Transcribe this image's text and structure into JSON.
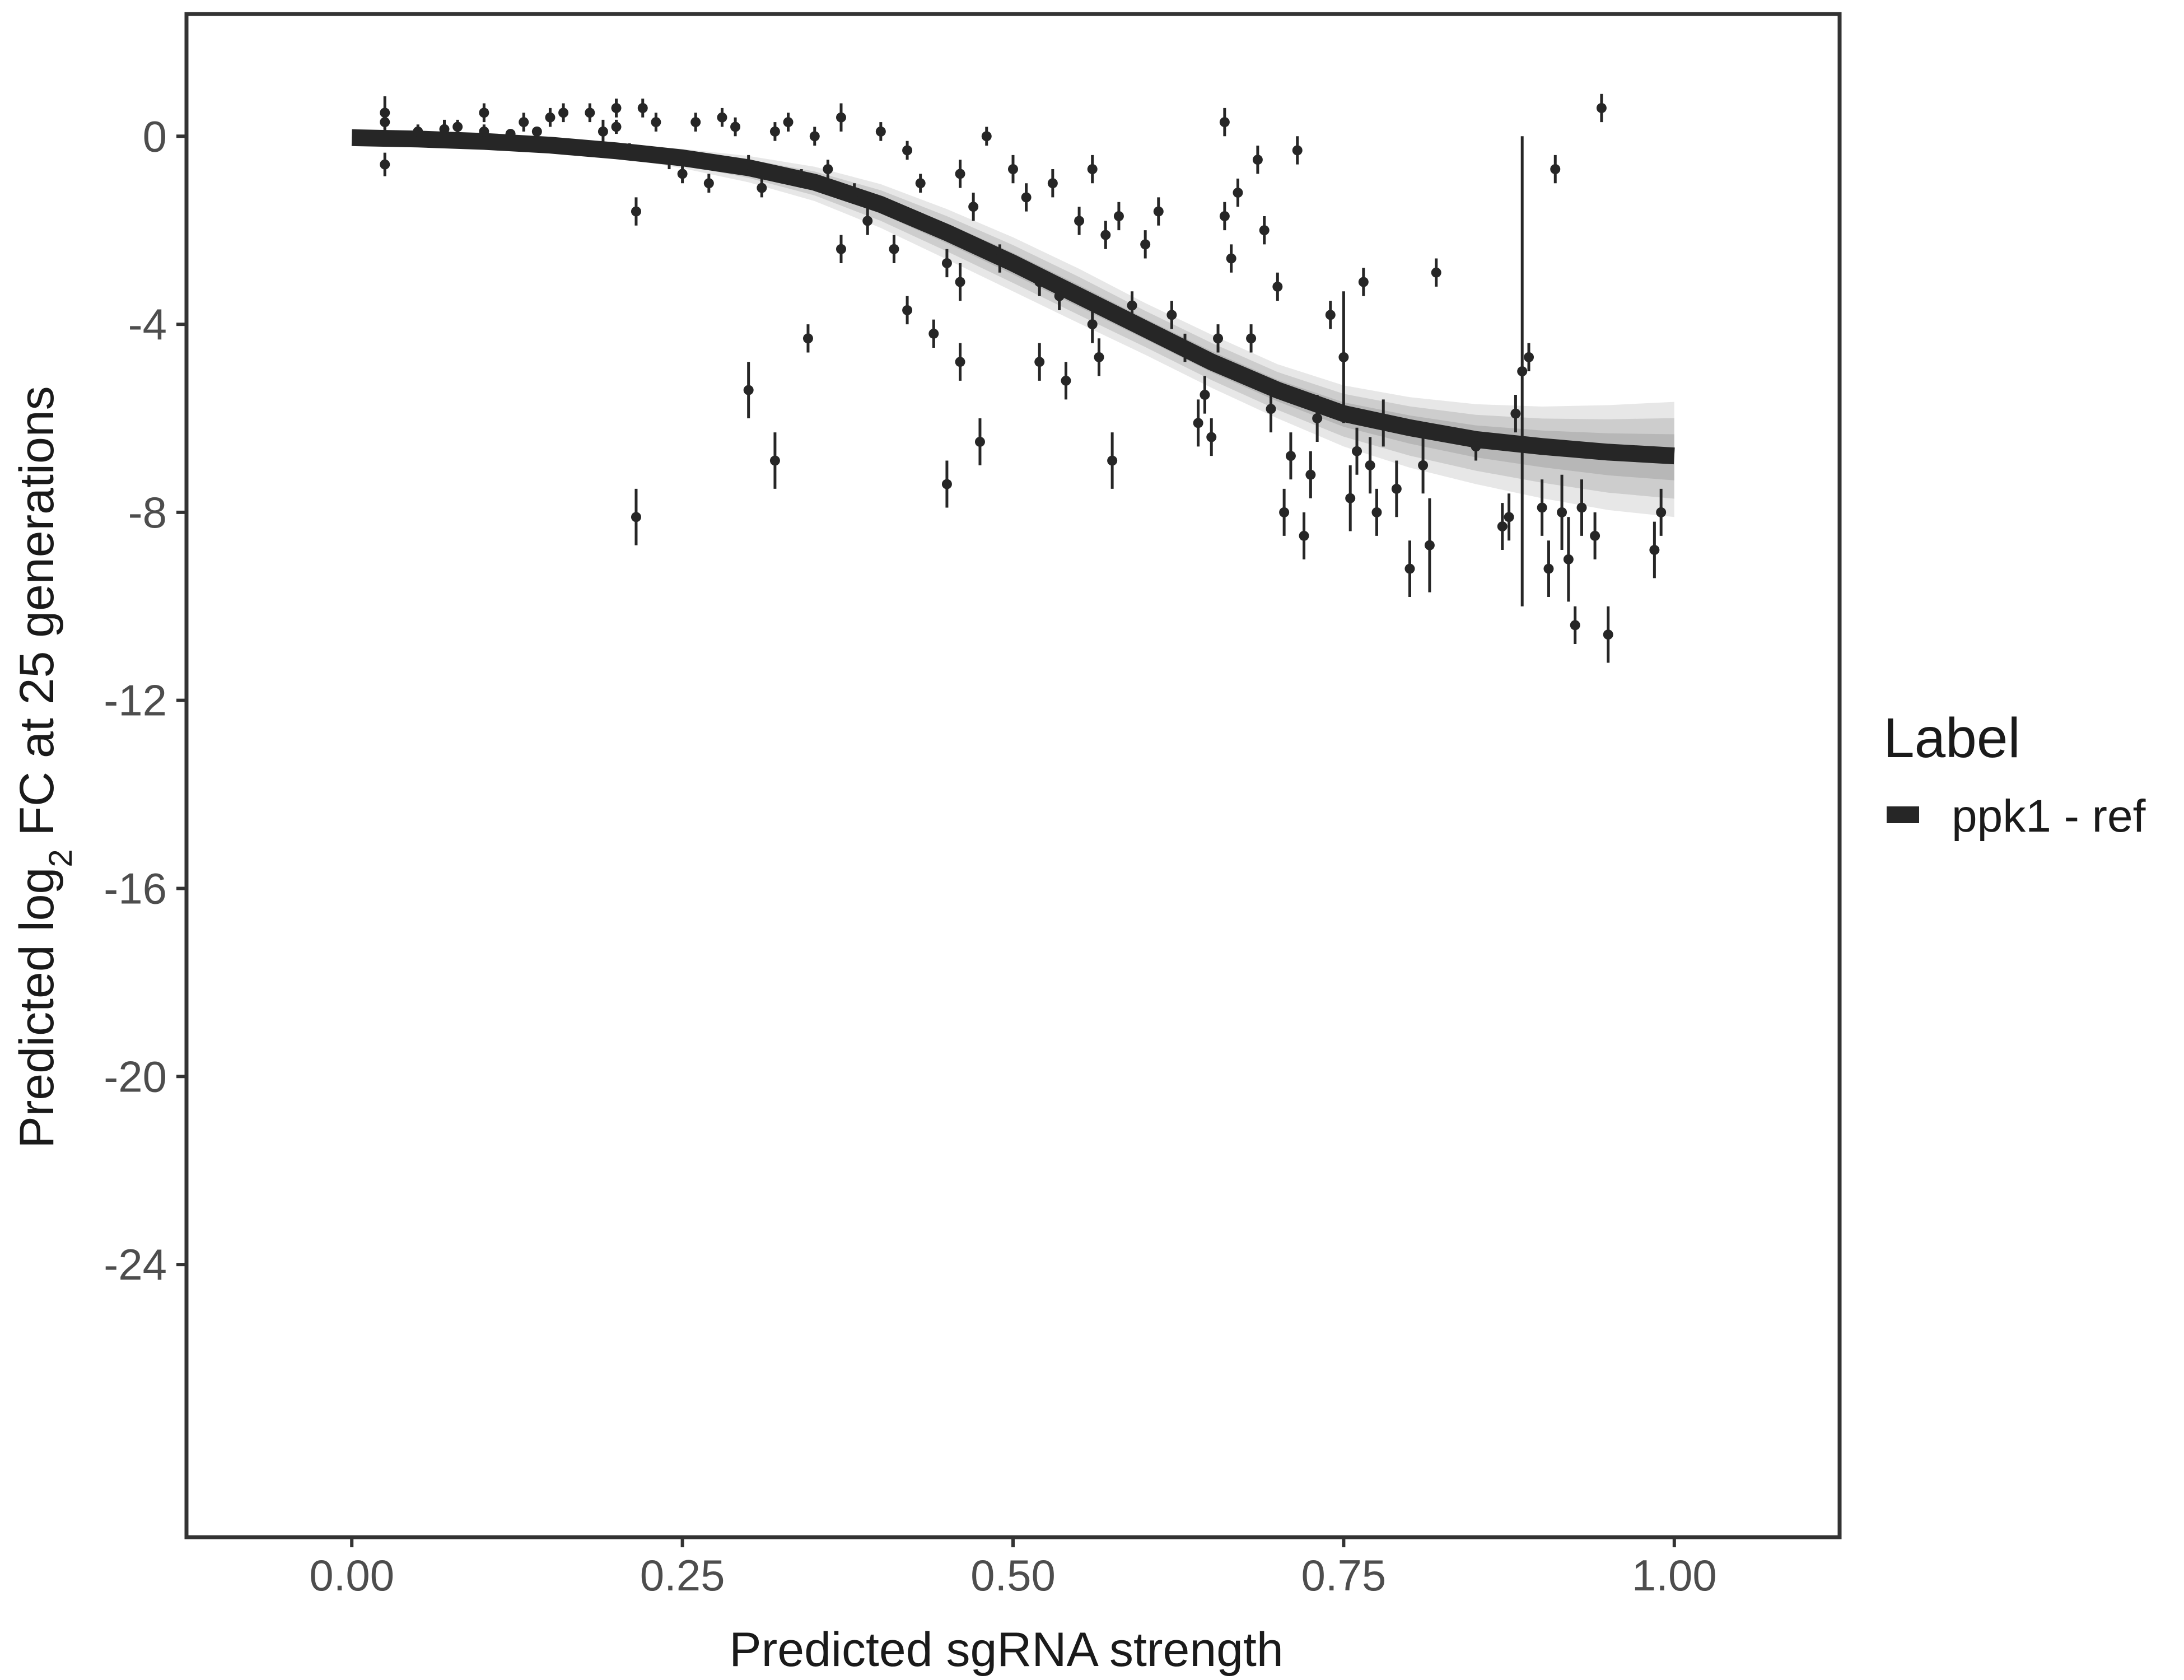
{
  "chart_data": {
    "type": "scatter",
    "xlabel": "Predicted sgRNA strength",
    "ylabel_parts": [
      "Predicted  log",
      "2",
      " FC at 25 generations"
    ],
    "xlim": [
      -0.125,
      1.125
    ],
    "ylim": [
      -29.8,
      2.6
    ],
    "xticks": [
      0,
      0.25,
      0.5,
      0.75,
      1
    ],
    "xtick_labels": [
      "0.00",
      "0.25",
      "0.50",
      "0.75",
      "1.00"
    ],
    "yticks": [
      0,
      -4,
      -8,
      -12,
      -16,
      -20,
      -24
    ],
    "ytick_labels": [
      "0",
      "-4",
      "-8",
      "-12",
      "-16",
      "-20",
      "-24"
    ],
    "grid": false,
    "legend": {
      "title": "Label",
      "placement": "right",
      "entries": [
        {
          "label": "ppk1 - ref",
          "color": "#262626"
        }
      ]
    },
    "fit_curve": {
      "label": "ppk1 - ref",
      "color": "#262626",
      "band_color": "#9e9e9e",
      "x": [
        0,
        0.05,
        0.1,
        0.15,
        0.2,
        0.25,
        0.3,
        0.35,
        0.4,
        0.45,
        0.5,
        0.55,
        0.6,
        0.65,
        0.7,
        0.75,
        0.8,
        0.85,
        0.9,
        0.95,
        1.0
      ],
      "y": [
        -0.03,
        -0.06,
        -0.11,
        -0.19,
        -0.31,
        -0.46,
        -0.67,
        -0.98,
        -1.45,
        -2.05,
        -2.7,
        -3.4,
        -4.1,
        -4.8,
        -5.4,
        -5.9,
        -6.2,
        -6.45,
        -6.6,
        -6.72,
        -6.8
      ],
      "band_lower": [
        -0.05,
        -0.1,
        -0.17,
        -0.28,
        -0.45,
        -0.68,
        -0.98,
        -1.38,
        -1.95,
        -2.62,
        -3.3,
        -3.98,
        -4.65,
        -5.35,
        -6.0,
        -6.6,
        -7.05,
        -7.4,
        -7.7,
        -7.95,
        -8.1
      ],
      "band_upper": [
        0,
        0,
        -0.04,
        -0.09,
        -0.17,
        -0.27,
        -0.42,
        -0.65,
        -1.02,
        -1.55,
        -2.15,
        -2.82,
        -3.55,
        -4.22,
        -4.85,
        -5.3,
        -5.55,
        -5.7,
        -5.75,
        -5.72,
        -5.65
      ]
    },
    "points": [
      {
        "x": 0.025,
        "y": 0.5,
        "err": 0.35
      },
      {
        "x": 0.025,
        "y": 0.3,
        "err": 0.2
      },
      {
        "x": 0.025,
        "y": -0.6,
        "err": 0.25
      },
      {
        "x": 0.05,
        "y": 0.1,
        "err": 0.15
      },
      {
        "x": 0.06,
        "y": -0.05,
        "err": 0.1
      },
      {
        "x": 0.07,
        "y": 0.15,
        "err": 0.2
      },
      {
        "x": 0.08,
        "y": 0.2,
        "err": 0.15
      },
      {
        "x": 0.1,
        "y": 0.5,
        "err": 0.2
      },
      {
        "x": 0.1,
        "y": 0.1,
        "err": 0.15
      },
      {
        "x": 0.12,
        "y": 0.05,
        "err": 0.1
      },
      {
        "x": 0.13,
        "y": 0.3,
        "err": 0.2
      },
      {
        "x": 0.14,
        "y": 0.1,
        "err": 0.1
      },
      {
        "x": 0.15,
        "y": 0.4,
        "err": 0.2
      },
      {
        "x": 0.15,
        "y": -0.2,
        "err": 0.15
      },
      {
        "x": 0.16,
        "y": 0.5,
        "err": 0.2
      },
      {
        "x": 0.18,
        "y": 0.5,
        "err": 0.2
      },
      {
        "x": 0.19,
        "y": 0.1,
        "err": 0.25
      },
      {
        "x": 0.2,
        "y": 0.6,
        "err": 0.2
      },
      {
        "x": 0.2,
        "y": 0.2,
        "err": 0.15
      },
      {
        "x": 0.21,
        "y": -0.3,
        "err": 0.15
      },
      {
        "x": 0.215,
        "y": -1.6,
        "err": 0.3
      },
      {
        "x": 0.215,
        "y": -8.1,
        "err": 0.6
      },
      {
        "x": 0.22,
        "y": 0.6,
        "err": 0.2
      },
      {
        "x": 0.23,
        "y": 0.3,
        "err": 0.2
      },
      {
        "x": 0.24,
        "y": -0.5,
        "err": 0.2
      },
      {
        "x": 0.25,
        "y": -0.8,
        "err": 0.2
      },
      {
        "x": 0.26,
        "y": 0.3,
        "err": 0.2
      },
      {
        "x": 0.27,
        "y": -1.0,
        "err": 0.2
      },
      {
        "x": 0.28,
        "y": 0.4,
        "err": 0.2
      },
      {
        "x": 0.29,
        "y": 0.2,
        "err": 0.2
      },
      {
        "x": 0.3,
        "y": -0.6,
        "err": 0.2
      },
      {
        "x": 0.3,
        "y": -5.4,
        "err": 0.6
      },
      {
        "x": 0.31,
        "y": -1.1,
        "err": 0.2
      },
      {
        "x": 0.32,
        "y": 0.1,
        "err": 0.2
      },
      {
        "x": 0.32,
        "y": -6.9,
        "err": 0.6
      },
      {
        "x": 0.33,
        "y": 0.3,
        "err": 0.2
      },
      {
        "x": 0.34,
        "y": -0.9,
        "err": 0.2
      },
      {
        "x": 0.345,
        "y": -4.3,
        "err": 0.3
      },
      {
        "x": 0.35,
        "y": 0.0,
        "err": 0.2
      },
      {
        "x": 0.36,
        "y": -0.7,
        "err": 0.2
      },
      {
        "x": 0.37,
        "y": 0.4,
        "err": 0.3
      },
      {
        "x": 0.37,
        "y": -2.4,
        "err": 0.3
      },
      {
        "x": 0.38,
        "y": -1.2,
        "err": 0.2
      },
      {
        "x": 0.39,
        "y": -1.8,
        "err": 0.3
      },
      {
        "x": 0.4,
        "y": 0.1,
        "err": 0.2
      },
      {
        "x": 0.41,
        "y": -2.4,
        "err": 0.3
      },
      {
        "x": 0.42,
        "y": -0.3,
        "err": 0.2
      },
      {
        "x": 0.42,
        "y": -3.7,
        "err": 0.3
      },
      {
        "x": 0.43,
        "y": -1.0,
        "err": 0.2
      },
      {
        "x": 0.44,
        "y": -4.2,
        "err": 0.3
      },
      {
        "x": 0.45,
        "y": -2.7,
        "err": 0.3
      },
      {
        "x": 0.45,
        "y": -7.4,
        "err": 0.5
      },
      {
        "x": 0.46,
        "y": -0.8,
        "err": 0.3
      },
      {
        "x": 0.46,
        "y": -3.1,
        "err": 0.4
      },
      {
        "x": 0.46,
        "y": -4.8,
        "err": 0.4
      },
      {
        "x": 0.47,
        "y": -1.5,
        "err": 0.3
      },
      {
        "x": 0.475,
        "y": -6.5,
        "err": 0.5
      },
      {
        "x": 0.48,
        "y": 0.0,
        "err": 0.2
      },
      {
        "x": 0.49,
        "y": -2.6,
        "err": 0.3
      },
      {
        "x": 0.5,
        "y": -0.7,
        "err": 0.3
      },
      {
        "x": 0.51,
        "y": -1.3,
        "err": 0.3
      },
      {
        "x": 0.52,
        "y": -3.1,
        "err": 0.3
      },
      {
        "x": 0.52,
        "y": -4.8,
        "err": 0.4
      },
      {
        "x": 0.53,
        "y": -1.0,
        "err": 0.3
      },
      {
        "x": 0.535,
        "y": -3.4,
        "err": 0.3
      },
      {
        "x": 0.54,
        "y": -5.2,
        "err": 0.4
      },
      {
        "x": 0.55,
        "y": -1.8,
        "err": 0.3
      },
      {
        "x": 0.56,
        "y": -0.7,
        "err": 0.3
      },
      {
        "x": 0.56,
        "y": -4.0,
        "err": 0.4
      },
      {
        "x": 0.565,
        "y": -4.7,
        "err": 0.4
      },
      {
        "x": 0.57,
        "y": -2.1,
        "err": 0.3
      },
      {
        "x": 0.575,
        "y": -6.9,
        "err": 0.6
      },
      {
        "x": 0.58,
        "y": -1.7,
        "err": 0.3
      },
      {
        "x": 0.59,
        "y": -3.6,
        "err": 0.3
      },
      {
        "x": 0.6,
        "y": -2.3,
        "err": 0.3
      },
      {
        "x": 0.61,
        "y": -1.6,
        "err": 0.3
      },
      {
        "x": 0.62,
        "y": -3.8,
        "err": 0.3
      },
      {
        "x": 0.63,
        "y": -4.5,
        "err": 0.3
      },
      {
        "x": 0.64,
        "y": -6.1,
        "err": 0.5
      },
      {
        "x": 0.645,
        "y": -5.5,
        "err": 0.4
      },
      {
        "x": 0.65,
        "y": -6.4,
        "err": 0.4
      },
      {
        "x": 0.655,
        "y": -4.3,
        "err": 0.3
      },
      {
        "x": 0.66,
        "y": 0.3,
        "err": 0.3
      },
      {
        "x": 0.66,
        "y": -1.7,
        "err": 0.3
      },
      {
        "x": 0.665,
        "y": -2.6,
        "err": 0.3
      },
      {
        "x": 0.67,
        "y": -1.2,
        "err": 0.3
      },
      {
        "x": 0.68,
        "y": -4.3,
        "err": 0.3
      },
      {
        "x": 0.685,
        "y": -0.5,
        "err": 0.3
      },
      {
        "x": 0.69,
        "y": -2.0,
        "err": 0.3
      },
      {
        "x": 0.695,
        "y": -5.8,
        "err": 0.5
      },
      {
        "x": 0.7,
        "y": -3.2,
        "err": 0.3
      },
      {
        "x": 0.705,
        "y": -8.0,
        "err": 0.5
      },
      {
        "x": 0.71,
        "y": -6.8,
        "err": 0.5
      },
      {
        "x": 0.715,
        "y": -0.3,
        "err": 0.3
      },
      {
        "x": 0.72,
        "y": -8.5,
        "err": 0.5
      },
      {
        "x": 0.725,
        "y": -7.2,
        "err": 0.5
      },
      {
        "x": 0.73,
        "y": -6.0,
        "err": 0.5
      },
      {
        "x": 0.74,
        "y": -3.8,
        "err": 0.3
      },
      {
        "x": 0.75,
        "y": -4.7,
        "err": 1.4
      },
      {
        "x": 0.755,
        "y": -7.7,
        "err": 0.7
      },
      {
        "x": 0.76,
        "y": -6.7,
        "err": 0.5
      },
      {
        "x": 0.765,
        "y": -3.1,
        "err": 0.3
      },
      {
        "x": 0.77,
        "y": -7.0,
        "err": 0.6
      },
      {
        "x": 0.775,
        "y": -8.0,
        "err": 0.5
      },
      {
        "x": 0.78,
        "y": -6.1,
        "err": 0.5
      },
      {
        "x": 0.79,
        "y": -7.5,
        "err": 0.6
      },
      {
        "x": 0.8,
        "y": -9.2,
        "err": 0.6
      },
      {
        "x": 0.81,
        "y": -7.0,
        "err": 0.6
      },
      {
        "x": 0.815,
        "y": -8.7,
        "err": 1.0
      },
      {
        "x": 0.82,
        "y": -2.9,
        "err": 0.3
      },
      {
        "x": 0.85,
        "y": -6.6,
        "err": 0.3
      },
      {
        "x": 0.87,
        "y": -8.3,
        "err": 0.5
      },
      {
        "x": 0.875,
        "y": -8.1,
        "err": 0.5
      },
      {
        "x": 0.88,
        "y": -5.9,
        "err": 0.4
      },
      {
        "x": 0.885,
        "y": -5.0,
        "err": 5.0
      },
      {
        "x": 0.89,
        "y": -4.7,
        "err": 0.3
      },
      {
        "x": 0.9,
        "y": -7.9,
        "err": 0.6
      },
      {
        "x": 0.905,
        "y": -9.2,
        "err": 0.6
      },
      {
        "x": 0.91,
        "y": -0.7,
        "err": 0.3
      },
      {
        "x": 0.915,
        "y": -8.0,
        "err": 0.8
      },
      {
        "x": 0.92,
        "y": -9.0,
        "err": 0.9
      },
      {
        "x": 0.925,
        "y": -10.4,
        "err": 0.4
      },
      {
        "x": 0.93,
        "y": -7.9,
        "err": 0.6
      },
      {
        "x": 0.94,
        "y": -8.5,
        "err": 0.5
      },
      {
        "x": 0.945,
        "y": 0.6,
        "err": 0.3
      },
      {
        "x": 0.95,
        "y": -10.6,
        "err": 0.6
      },
      {
        "x": 0.985,
        "y": -8.8,
        "err": 0.6
      },
      {
        "x": 0.99,
        "y": -8.0,
        "err": 0.5
      }
    ]
  }
}
